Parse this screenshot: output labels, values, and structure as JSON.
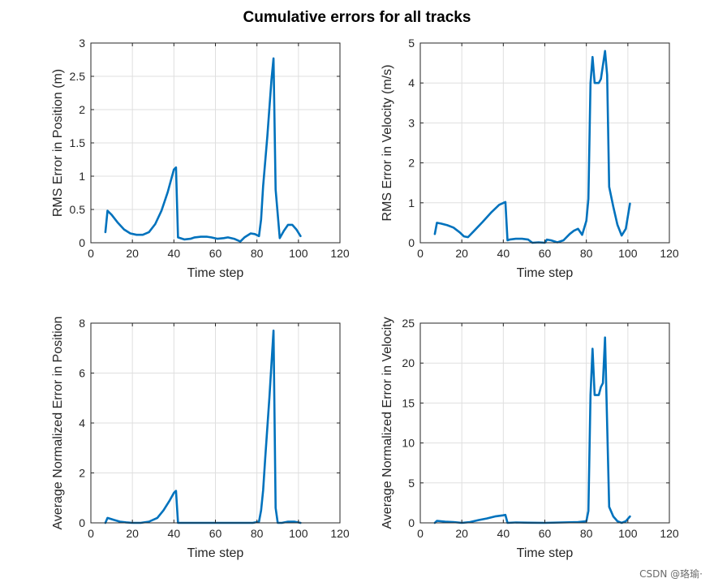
{
  "figure": {
    "title": "Cumulative errors for all tracks",
    "watermark": "CSDN @珞瑜·",
    "line_color": "#0072BD"
  },
  "chart_data": [
    {
      "type": "line",
      "xlabel": "Time step",
      "ylabel": "RMS Error in Position (m)",
      "xlim": [
        0,
        120
      ],
      "ylim": [
        0,
        3
      ],
      "xticks": [
        0,
        20,
        40,
        60,
        80,
        100,
        120
      ],
      "yticks": [
        0,
        0.5,
        1,
        1.5,
        2,
        2.5,
        3
      ],
      "grid": true,
      "series": [
        {
          "x": [
            7,
            8,
            10,
            13,
            16,
            19,
            22,
            25,
            28,
            31,
            34,
            37,
            40,
            41,
            42,
            45,
            48,
            50,
            53,
            56,
            58,
            61,
            64,
            66,
            69,
            72,
            74,
            77,
            79,
            81,
            82,
            83,
            85,
            87,
            88,
            89,
            91,
            93,
            95,
            97,
            99,
            101
          ],
          "y": [
            0.16,
            0.48,
            0.42,
            0.3,
            0.2,
            0.14,
            0.12,
            0.12,
            0.16,
            0.28,
            0.48,
            0.76,
            1.1,
            1.13,
            0.08,
            0.05,
            0.06,
            0.08,
            0.09,
            0.09,
            0.08,
            0.06,
            0.07,
            0.08,
            0.06,
            0.02,
            0.08,
            0.14,
            0.13,
            0.1,
            0.35,
            0.85,
            1.6,
            2.45,
            2.77,
            0.8,
            0.07,
            0.18,
            0.27,
            0.27,
            0.2,
            0.1
          ]
        }
      ]
    },
    {
      "type": "line",
      "xlabel": "Time step",
      "ylabel": "RMS Error in Velocity (m/s)",
      "xlim": [
        0,
        120
      ],
      "ylim": [
        0,
        5
      ],
      "xticks": [
        0,
        20,
        40,
        60,
        80,
        100,
        120
      ],
      "yticks": [
        0,
        1,
        2,
        3,
        4,
        5
      ],
      "grid": true,
      "series": [
        {
          "x": [
            7,
            8,
            10,
            13,
            16,
            19,
            21,
            23,
            26,
            30,
            34,
            38,
            41,
            42,
            43,
            46,
            49,
            52,
            54,
            57,
            60,
            61,
            63,
            66,
            69,
            72,
            74,
            76,
            78,
            80,
            81,
            82,
            83,
            84,
            86,
            87,
            89,
            90,
            91,
            93,
            95,
            97,
            99,
            101
          ],
          "y": [
            0.22,
            0.5,
            0.48,
            0.44,
            0.38,
            0.26,
            0.16,
            0.14,
            0.3,
            0.52,
            0.75,
            0.95,
            1.02,
            0.06,
            0.08,
            0.1,
            0.1,
            0.08,
            0.0,
            0.01,
            0.0,
            0.08,
            0.06,
            0.01,
            0.06,
            0.22,
            0.3,
            0.35,
            0.2,
            0.55,
            1.1,
            4.0,
            4.65,
            4.0,
            4.0,
            4.1,
            4.8,
            4.2,
            1.4,
            0.9,
            0.45,
            0.18,
            0.35,
            0.98
          ]
        }
      ]
    },
    {
      "type": "line",
      "xlabel": "Time step",
      "ylabel": "Average Normalized Error in Position",
      "xlim": [
        0,
        120
      ],
      "ylim": [
        0,
        8
      ],
      "xticks": [
        0,
        20,
        40,
        60,
        80,
        100,
        120
      ],
      "yticks": [
        0,
        2,
        4,
        6,
        8
      ],
      "grid": true,
      "series": [
        {
          "x": [
            7,
            8,
            11,
            14,
            17,
            20,
            24,
            28,
            32,
            35,
            38,
            40,
            41,
            42,
            46,
            52,
            60,
            70,
            78,
            81,
            82,
            83,
            84,
            86,
            88,
            89,
            90,
            92,
            95,
            98,
            101
          ],
          "y": [
            0.0,
            0.2,
            0.12,
            0.05,
            0.02,
            0.0,
            0.0,
            0.05,
            0.2,
            0.5,
            0.9,
            1.2,
            1.28,
            0.0,
            0.0,
            0.0,
            0.0,
            0.0,
            0.0,
            0.05,
            0.5,
            1.3,
            2.6,
            5.0,
            7.7,
            0.6,
            0.0,
            0.0,
            0.05,
            0.05,
            0.0
          ]
        }
      ]
    },
    {
      "type": "line",
      "xlabel": "Time step",
      "ylabel": "Average Normalized Error in Velocity",
      "xlim": [
        0,
        120
      ],
      "ylim": [
        0,
        25
      ],
      "xticks": [
        0,
        20,
        40,
        60,
        80,
        100,
        120
      ],
      "yticks": [
        0,
        5,
        10,
        15,
        20,
        25
      ],
      "grid": true,
      "series": [
        {
          "x": [
            7,
            8,
            12,
            16,
            20,
            24,
            28,
            32,
            36,
            40,
            41,
            42,
            46,
            52,
            60,
            68,
            76,
            80,
            81,
            82,
            83,
            84,
            86,
            87,
            88,
            89,
            91,
            93,
            95,
            97,
            99,
            101
          ],
          "y": [
            0.0,
            0.25,
            0.15,
            0.1,
            0.0,
            0.1,
            0.35,
            0.55,
            0.8,
            0.95,
            1.0,
            0.0,
            0.05,
            0.02,
            0.0,
            0.05,
            0.1,
            0.2,
            1.5,
            16.0,
            21.8,
            16.0,
            16.0,
            17.0,
            17.5,
            23.2,
            2.0,
            0.8,
            0.2,
            0.0,
            0.2,
            0.8
          ]
        }
      ]
    }
  ]
}
